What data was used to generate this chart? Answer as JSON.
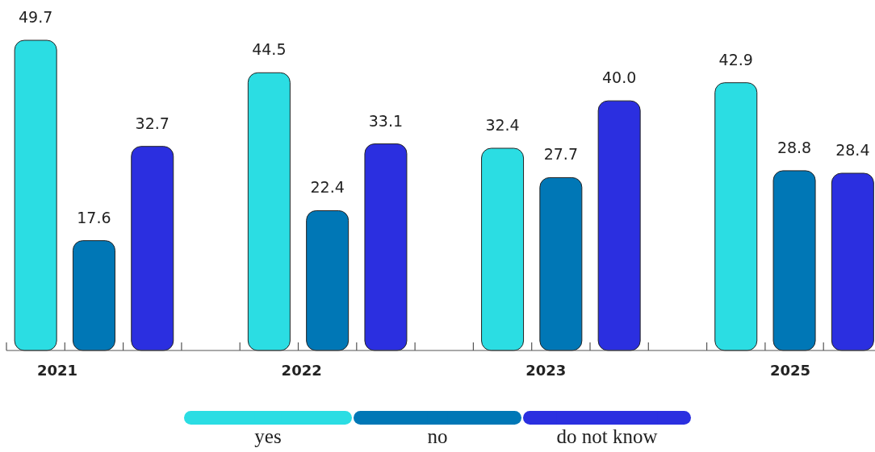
{
  "chart_data": {
    "type": "bar",
    "categories": [
      "2021",
      "2022",
      "2023",
      "2025"
    ],
    "series": [
      {
        "name": "yes",
        "color": "#2bdde3",
        "values": [
          49.7,
          44.5,
          32.4,
          42.9
        ],
        "value_labels": [
          "49.7",
          "44.5",
          "32.4",
          "42.9"
        ]
      },
      {
        "name": "no",
        "color": "#0077b6",
        "values": [
          17.6,
          22.4,
          27.7,
          28.8
        ],
        "value_labels": [
          "17.6",
          "22.4",
          "27.7",
          "28.8"
        ]
      },
      {
        "name": "do not know",
        "color": "#2b2fe0",
        "values": [
          32.7,
          33.1,
          40.0,
          28.4
        ],
        "value_labels": [
          "32.7",
          "33.1",
          "40.0",
          "28.4"
        ]
      }
    ],
    "legend": "bottom"
  }
}
